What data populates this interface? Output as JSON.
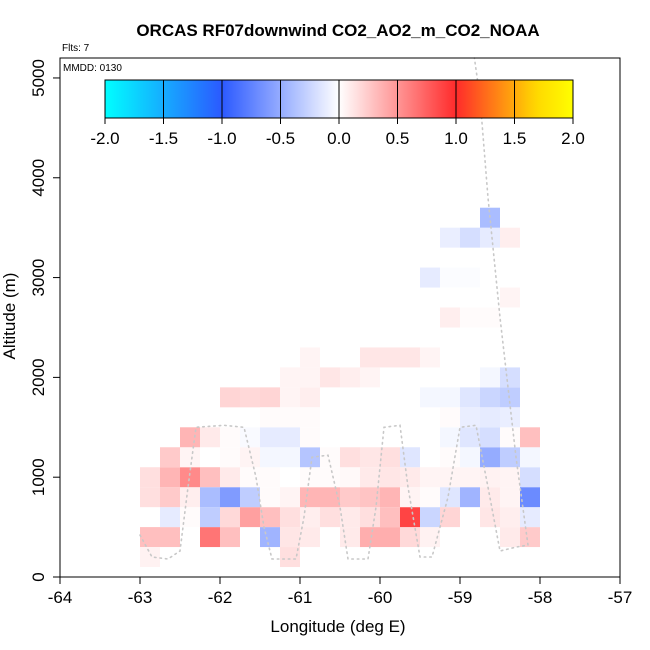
{
  "chart_data": {
    "type": "heatmap",
    "title": "ORCAS RF07downwind CO2_AO2_m_CO2_NOAA",
    "flights_label": "Flts: 7",
    "date_label": "MMDD: 0130",
    "xlabel": "Longitude (deg E)",
    "ylabel": "Altitude (m)",
    "xlim": [
      -64,
      -57
    ],
    "ylim": [
      0,
      5200
    ],
    "xticks": [
      "-64",
      "-63",
      "-62",
      "-61",
      "-60",
      "-59",
      "-58",
      "-57"
    ],
    "yticks": [
      "0",
      "1000",
      "2000",
      "3000",
      "4000",
      "5000"
    ],
    "colorbar": {
      "range": [
        -2.0,
        2.0
      ],
      "ticks": [
        "-2.0",
        "-1.5",
        "-1.0",
        "-0.5",
        "0.0",
        "0.5",
        "1.0",
        "1.5",
        "2.0"
      ],
      "colors": [
        "#00ffff",
        "#2b59ff",
        "#ffffff",
        "#ff2b2b",
        "#ffd700",
        "#ffff00"
      ]
    },
    "cell_size": {
      "lon": 0.25,
      "alt_m": 200
    },
    "cells": [
      {
        "lon": -62.875,
        "alt": 400,
        "v": 0.3
      },
      {
        "lon": -62.625,
        "alt": 400,
        "v": 0.3
      },
      {
        "lon": -62.125,
        "alt": 400,
        "v": 0.65
      },
      {
        "lon": -61.875,
        "alt": 400,
        "v": 0.3
      },
      {
        "lon": -61.375,
        "alt": 400,
        "v": -0.45
      },
      {
        "lon": -61.125,
        "alt": 400,
        "v": 0.12
      },
      {
        "lon": -60.875,
        "alt": 400,
        "v": 0.1
      },
      {
        "lon": -60.375,
        "alt": 400,
        "v": 0.1
      },
      {
        "lon": -60.125,
        "alt": 400,
        "v": 0.38
      },
      {
        "lon": -59.875,
        "alt": 400,
        "v": 0.38
      },
      {
        "lon": -59.625,
        "alt": 400,
        "v": 0.18
      },
      {
        "lon": -59.375,
        "alt": 400,
        "v": 0.06
      },
      {
        "lon": -58.375,
        "alt": 400,
        "v": 0.1
      },
      {
        "lon": -58.125,
        "alt": 400,
        "v": 0.25
      },
      {
        "lon": -62.875,
        "alt": 200,
        "v": 0.06
      },
      {
        "lon": -61.125,
        "alt": 200,
        "v": 0.15
      },
      {
        "lon": -62.625,
        "alt": 600,
        "v": -0.12
      },
      {
        "lon": -62.375,
        "alt": 600,
        "v": 0.02
      },
      {
        "lon": -62.125,
        "alt": 600,
        "v": -0.3
      },
      {
        "lon": -61.875,
        "alt": 600,
        "v": 0.18
      },
      {
        "lon": -61.625,
        "alt": 600,
        "v": 0.45
      },
      {
        "lon": -61.375,
        "alt": 600,
        "v": 0.3
      },
      {
        "lon": -61.125,
        "alt": 600,
        "v": 0.15
      },
      {
        "lon": -60.875,
        "alt": 600,
        "v": 0.08
      },
      {
        "lon": -60.625,
        "alt": 600,
        "v": 0.15
      },
      {
        "lon": -60.375,
        "alt": 600,
        "v": 0.1
      },
      {
        "lon": -60.125,
        "alt": 600,
        "v": 0.15
      },
      {
        "lon": -59.875,
        "alt": 600,
        "v": 0.3
      },
      {
        "lon": -59.625,
        "alt": 600,
        "v": 0.88
      },
      {
        "lon": -59.375,
        "alt": 600,
        "v": -0.25
      },
      {
        "lon": -59.125,
        "alt": 600,
        "v": 0.2
      },
      {
        "lon": -58.625,
        "alt": 600,
        "v": 0.12
      },
      {
        "lon": -58.375,
        "alt": 600,
        "v": 0.08
      },
      {
        "lon": -58.125,
        "alt": 600,
        "v": -0.12
      },
      {
        "lon": -62.875,
        "alt": 800,
        "v": 0.15
      },
      {
        "lon": -62.625,
        "alt": 800,
        "v": 0.25
      },
      {
        "lon": -62.375,
        "alt": 800,
        "v": 0.08
      },
      {
        "lon": -62.125,
        "alt": 800,
        "v": -0.4
      },
      {
        "lon": -61.875,
        "alt": 800,
        "v": -0.6
      },
      {
        "lon": -61.625,
        "alt": 800,
        "v": -0.3
      },
      {
        "lon": -61.375,
        "alt": 800,
        "v": 0.02
      },
      {
        "lon": -61.125,
        "alt": 800,
        "v": 0.05
      },
      {
        "lon": -60.875,
        "alt": 800,
        "v": 0.35
      },
      {
        "lon": -60.625,
        "alt": 800,
        "v": 0.35
      },
      {
        "lon": -60.375,
        "alt": 800,
        "v": 0.25
      },
      {
        "lon": -60.125,
        "alt": 800,
        "v": 0.28
      },
      {
        "lon": -59.875,
        "alt": 800,
        "v": 0.35
      },
      {
        "lon": -59.625,
        "alt": 800,
        "v": 0.05
      },
      {
        "lon": -59.375,
        "alt": 800,
        "v": 0.02
      },
      {
        "lon": -59.125,
        "alt": 800,
        "v": -0.15
      },
      {
        "lon": -58.875,
        "alt": 800,
        "v": -0.45
      },
      {
        "lon": -58.625,
        "alt": 800,
        "v": 0.1
      },
      {
        "lon": -58.375,
        "alt": 800,
        "v": 0.05
      },
      {
        "lon": -58.125,
        "alt": 800,
        "v": -0.7
      },
      {
        "lon": -62.875,
        "alt": 1000,
        "v": 0.15
      },
      {
        "lon": -62.625,
        "alt": 1000,
        "v": 0.35
      },
      {
        "lon": -62.375,
        "alt": 1000,
        "v": 0.55
      },
      {
        "lon": -62.125,
        "alt": 1000,
        "v": 0.3
      },
      {
        "lon": -61.875,
        "alt": 1000,
        "v": 0.1
      },
      {
        "lon": -61.625,
        "alt": 1000,
        "v": 0.02
      },
      {
        "lon": -61.375,
        "alt": 1000,
        "v": 0.02
      },
      {
        "lon": -60.875,
        "alt": 1000,
        "v": 0.02
      },
      {
        "lon": -60.625,
        "alt": 1000,
        "v": 0.02
      },
      {
        "lon": -60.375,
        "alt": 1000,
        "v": 0.03
      },
      {
        "lon": -60.125,
        "alt": 1000,
        "v": 0.1
      },
      {
        "lon": -59.875,
        "alt": 1000,
        "v": 0.12
      },
      {
        "lon": -59.625,
        "alt": 1000,
        "v": 0.1
      },
      {
        "lon": -59.375,
        "alt": 1000,
        "v": 0.05
      },
      {
        "lon": -59.125,
        "alt": 1000,
        "v": 0.05
      },
      {
        "lon": -58.875,
        "alt": 1000,
        "v": 0.05
      },
      {
        "lon": -58.625,
        "alt": 1000,
        "v": 0.06
      },
      {
        "lon": -58.375,
        "alt": 1000,
        "v": 0.05
      },
      {
        "lon": -58.125,
        "alt": 1000,
        "v": -0.2
      },
      {
        "lon": -62.625,
        "alt": 1200,
        "v": 0.25
      },
      {
        "lon": -62.375,
        "alt": 1200,
        "v": 0.05
      },
      {
        "lon": -61.875,
        "alt": 1200,
        "v": 0.02
      },
      {
        "lon": -61.625,
        "alt": 1200,
        "v": 0.05
      },
      {
        "lon": -61.375,
        "alt": 1200,
        "v": -0.05
      },
      {
        "lon": -61.125,
        "alt": 1200,
        "v": -0.05
      },
      {
        "lon": -60.875,
        "alt": 1200,
        "v": -0.35
      },
      {
        "lon": -60.625,
        "alt": 1200,
        "v": 0.02
      },
      {
        "lon": -60.375,
        "alt": 1200,
        "v": 0.15
      },
      {
        "lon": -60.125,
        "alt": 1200,
        "v": 0.12
      },
      {
        "lon": -59.875,
        "alt": 1200,
        "v": 0.15
      },
      {
        "lon": -59.625,
        "alt": 1200,
        "v": -0.15
      },
      {
        "lon": -59.125,
        "alt": 1200,
        "v": 0.02
      },
      {
        "lon": -58.875,
        "alt": 1200,
        "v": -0.05
      },
      {
        "lon": -58.625,
        "alt": 1200,
        "v": -0.5
      },
      {
        "lon": -58.375,
        "alt": 1200,
        "v": -0.3
      },
      {
        "lon": -58.125,
        "alt": 1200,
        "v": -0.05
      },
      {
        "lon": -62.375,
        "alt": 1400,
        "v": 0.35
      },
      {
        "lon": -62.125,
        "alt": 1400,
        "v": 0.1
      },
      {
        "lon": -61.875,
        "alt": 1400,
        "v": 0.02
      },
      {
        "lon": -61.625,
        "alt": 1400,
        "v": -0.03
      },
      {
        "lon": -61.375,
        "alt": 1400,
        "v": -0.12
      },
      {
        "lon": -61.125,
        "alt": 1400,
        "v": -0.12
      },
      {
        "lon": -60.875,
        "alt": 1400,
        "v": 0.02
      },
      {
        "lon": -59.125,
        "alt": 1400,
        "v": -0.05
      },
      {
        "lon": -58.875,
        "alt": 1400,
        "v": -0.15
      },
      {
        "lon": -58.625,
        "alt": 1400,
        "v": -0.2
      },
      {
        "lon": -58.375,
        "alt": 1400,
        "v": 0.02
      },
      {
        "lon": -58.125,
        "alt": 1400,
        "v": 0.3
      },
      {
        "lon": -61.875,
        "alt": 1800,
        "v": 0.2
      },
      {
        "lon": -61.625,
        "alt": 1800,
        "v": 0.18
      },
      {
        "lon": -61.375,
        "alt": 1800,
        "v": 0.2
      },
      {
        "lon": -61.125,
        "alt": 1800,
        "v": 0.05
      },
      {
        "lon": -60.875,
        "alt": 1800,
        "v": 0.08
      },
      {
        "lon": -59.375,
        "alt": 1800,
        "v": -0.05
      },
      {
        "lon": -59.125,
        "alt": 1800,
        "v": -0.05
      },
      {
        "lon": -58.875,
        "alt": 1800,
        "v": -0.15
      },
      {
        "lon": -58.625,
        "alt": 1800,
        "v": -0.25
      },
      {
        "lon": -58.375,
        "alt": 1800,
        "v": -0.3
      },
      {
        "lon": -61.375,
        "alt": 1600,
        "v": 0.02
      },
      {
        "lon": -61.125,
        "alt": 1600,
        "v": 0.02
      },
      {
        "lon": -60.875,
        "alt": 1600,
        "v": 0.02
      },
      {
        "lon": -59.125,
        "alt": 1600,
        "v": 0.02
      },
      {
        "lon": -58.875,
        "alt": 1600,
        "v": -0.1
      },
      {
        "lon": -58.625,
        "alt": 1600,
        "v": -0.12
      },
      {
        "lon": -58.375,
        "alt": 1600,
        "v": -0.1
      },
      {
        "lon": -61.125,
        "alt": 2000,
        "v": 0.05
      },
      {
        "lon": -60.875,
        "alt": 2000,
        "v": 0.05
      },
      {
        "lon": -60.625,
        "alt": 2000,
        "v": 0.12
      },
      {
        "lon": -60.375,
        "alt": 2000,
        "v": 0.08
      },
      {
        "lon": -60.125,
        "alt": 2000,
        "v": 0.05
      },
      {
        "lon": -58.375,
        "alt": 2000,
        "v": -0.2
      },
      {
        "lon": -58.625,
        "alt": 2000,
        "v": -0.05
      },
      {
        "lon": -60.875,
        "alt": 2200,
        "v": 0.05
      },
      {
        "lon": -60.125,
        "alt": 2200,
        "v": 0.12
      },
      {
        "lon": -59.875,
        "alt": 2200,
        "v": 0.12
      },
      {
        "lon": -59.625,
        "alt": 2200,
        "v": 0.12
      },
      {
        "lon": -59.375,
        "alt": 2200,
        "v": 0.05
      },
      {
        "lon": -59.125,
        "alt": 2600,
        "v": 0.08
      },
      {
        "lon": -58.875,
        "alt": 2600,
        "v": 0.02
      },
      {
        "lon": -58.625,
        "alt": 2600,
        "v": 0.02
      },
      {
        "lon": -58.375,
        "alt": 2800,
        "v": 0.05
      },
      {
        "lon": -59.375,
        "alt": 3000,
        "v": -0.12
      },
      {
        "lon": -59.125,
        "alt": 3000,
        "v": -0.02
      },
      {
        "lon": -58.875,
        "alt": 3000,
        "v": -0.02
      },
      {
        "lon": -59.125,
        "alt": 3400,
        "v": -0.1
      },
      {
        "lon": -58.875,
        "alt": 3400,
        "v": -0.2
      },
      {
        "lon": -58.625,
        "alt": 3400,
        "v": -0.12
      },
      {
        "lon": -58.375,
        "alt": 3400,
        "v": 0.08
      },
      {
        "lon": -58.625,
        "alt": 3600,
        "v": -0.4
      }
    ],
    "flight_track": [
      [
        -63.0,
        420
      ],
      [
        -62.85,
        200
      ],
      [
        -62.65,
        180
      ],
      [
        -62.5,
        260
      ],
      [
        -62.4,
        900
      ],
      [
        -62.3,
        1500
      ],
      [
        -61.95,
        1520
      ],
      [
        -61.7,
        1500
      ],
      [
        -61.55,
        1000
      ],
      [
        -61.45,
        500
      ],
      [
        -61.35,
        180
      ],
      [
        -61.05,
        180
      ],
      [
        -60.95,
        600
      ],
      [
        -60.85,
        1200
      ],
      [
        -60.65,
        1220
      ],
      [
        -60.5,
        700
      ],
      [
        -60.4,
        180
      ],
      [
        -60.15,
        180
      ],
      [
        -60.05,
        700
      ],
      [
        -59.95,
        1500
      ],
      [
        -59.75,
        1520
      ],
      [
        -59.65,
        900
      ],
      [
        -59.5,
        200
      ],
      [
        -59.35,
        200
      ],
      [
        -59.15,
        800
      ],
      [
        -59.0,
        1500
      ],
      [
        -58.8,
        1520
      ],
      [
        -58.65,
        900
      ],
      [
        -58.5,
        260
      ],
      [
        -58.3,
        300
      ],
      [
        -58.15,
        320
      ],
      [
        -58.3,
        1200
      ],
      [
        -58.5,
        2600
      ],
      [
        -58.65,
        3800
      ],
      [
        -58.75,
        4800
      ],
      [
        -58.82,
        5200
      ]
    ]
  }
}
